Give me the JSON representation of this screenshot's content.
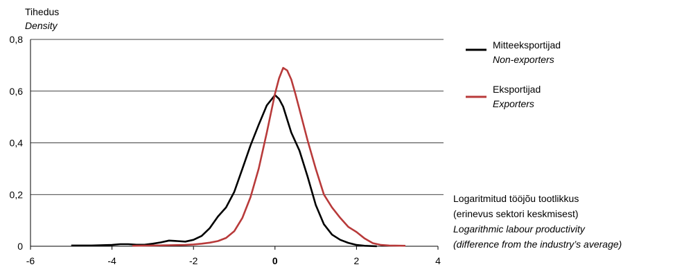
{
  "chart_data": {
    "type": "line",
    "ylabel_et": "Tihedus",
    "ylabel_en": "Density",
    "xlabel_lines": [
      {
        "text": "Logaritmitud tööjõu tootlikkus",
        "italic": false
      },
      {
        "text": "(erinevus sektori keskmisest)",
        "italic": false
      },
      {
        "text": "Logarithmic labour productivity",
        "italic": true
      },
      {
        "text": "(difference from the industry’s average)",
        "italic": true
      }
    ],
    "xlim": [
      -6,
      4
    ],
    "ylim": [
      0,
      0.8
    ],
    "x_ticks": [
      "-6",
      "-4",
      "-2",
      "0",
      "2",
      "4"
    ],
    "y_ticks": [
      "0",
      "0,2",
      "0,4",
      "0,6",
      "0,8"
    ],
    "grid": "horizontal",
    "legend_placement": "right",
    "series": [
      {
        "name_et": "Mitteeksportijad",
        "name_en": "Non-exporters",
        "color": "#000000",
        "points": [
          [
            -5.0,
            0.003
          ],
          [
            -4.5,
            0.003
          ],
          [
            -4.0,
            0.005
          ],
          [
            -3.8,
            0.008
          ],
          [
            -3.6,
            0.008
          ],
          [
            -3.4,
            0.006
          ],
          [
            -3.2,
            0.006
          ],
          [
            -3.0,
            0.01
          ],
          [
            -2.8,
            0.015
          ],
          [
            -2.6,
            0.022
          ],
          [
            -2.4,
            0.02
          ],
          [
            -2.2,
            0.018
          ],
          [
            -2.0,
            0.025
          ],
          [
            -1.8,
            0.04
          ],
          [
            -1.6,
            0.07
          ],
          [
            -1.4,
            0.115
          ],
          [
            -1.2,
            0.15
          ],
          [
            -1.0,
            0.21
          ],
          [
            -0.8,
            0.3
          ],
          [
            -0.6,
            0.39
          ],
          [
            -0.4,
            0.47
          ],
          [
            -0.2,
            0.545
          ],
          [
            0.0,
            0.585
          ],
          [
            0.1,
            0.57
          ],
          [
            0.2,
            0.54
          ],
          [
            0.4,
            0.44
          ],
          [
            0.6,
            0.37
          ],
          [
            0.8,
            0.27
          ],
          [
            1.0,
            0.16
          ],
          [
            1.2,
            0.085
          ],
          [
            1.4,
            0.045
          ],
          [
            1.6,
            0.025
          ],
          [
            1.8,
            0.013
          ],
          [
            2.0,
            0.005
          ],
          [
            2.2,
            0.002
          ],
          [
            2.5,
            0.0
          ]
        ]
      },
      {
        "name_et": "Eksportijad",
        "name_en": "Exporters",
        "color": "#b83a3a",
        "points": [
          [
            -3.5,
            0.002
          ],
          [
            -3.0,
            0.003
          ],
          [
            -2.6,
            0.004
          ],
          [
            -2.2,
            0.005
          ],
          [
            -2.0,
            0.007
          ],
          [
            -1.8,
            0.01
          ],
          [
            -1.6,
            0.014
          ],
          [
            -1.4,
            0.02
          ],
          [
            -1.2,
            0.032
          ],
          [
            -1.0,
            0.058
          ],
          [
            -0.8,
            0.11
          ],
          [
            -0.6,
            0.19
          ],
          [
            -0.4,
            0.3
          ],
          [
            -0.2,
            0.44
          ],
          [
            0.0,
            0.59
          ],
          [
            0.1,
            0.65
          ],
          [
            0.2,
            0.69
          ],
          [
            0.3,
            0.68
          ],
          [
            0.4,
            0.645
          ],
          [
            0.5,
            0.59
          ],
          [
            0.6,
            0.53
          ],
          [
            0.8,
            0.41
          ],
          [
            1.0,
            0.3
          ],
          [
            1.2,
            0.2
          ],
          [
            1.4,
            0.15
          ],
          [
            1.6,
            0.11
          ],
          [
            1.8,
            0.075
          ],
          [
            2.0,
            0.055
          ],
          [
            2.2,
            0.03
          ],
          [
            2.4,
            0.012
          ],
          [
            2.6,
            0.005
          ],
          [
            2.8,
            0.003
          ],
          [
            3.2,
            0.002
          ]
        ]
      }
    ]
  }
}
